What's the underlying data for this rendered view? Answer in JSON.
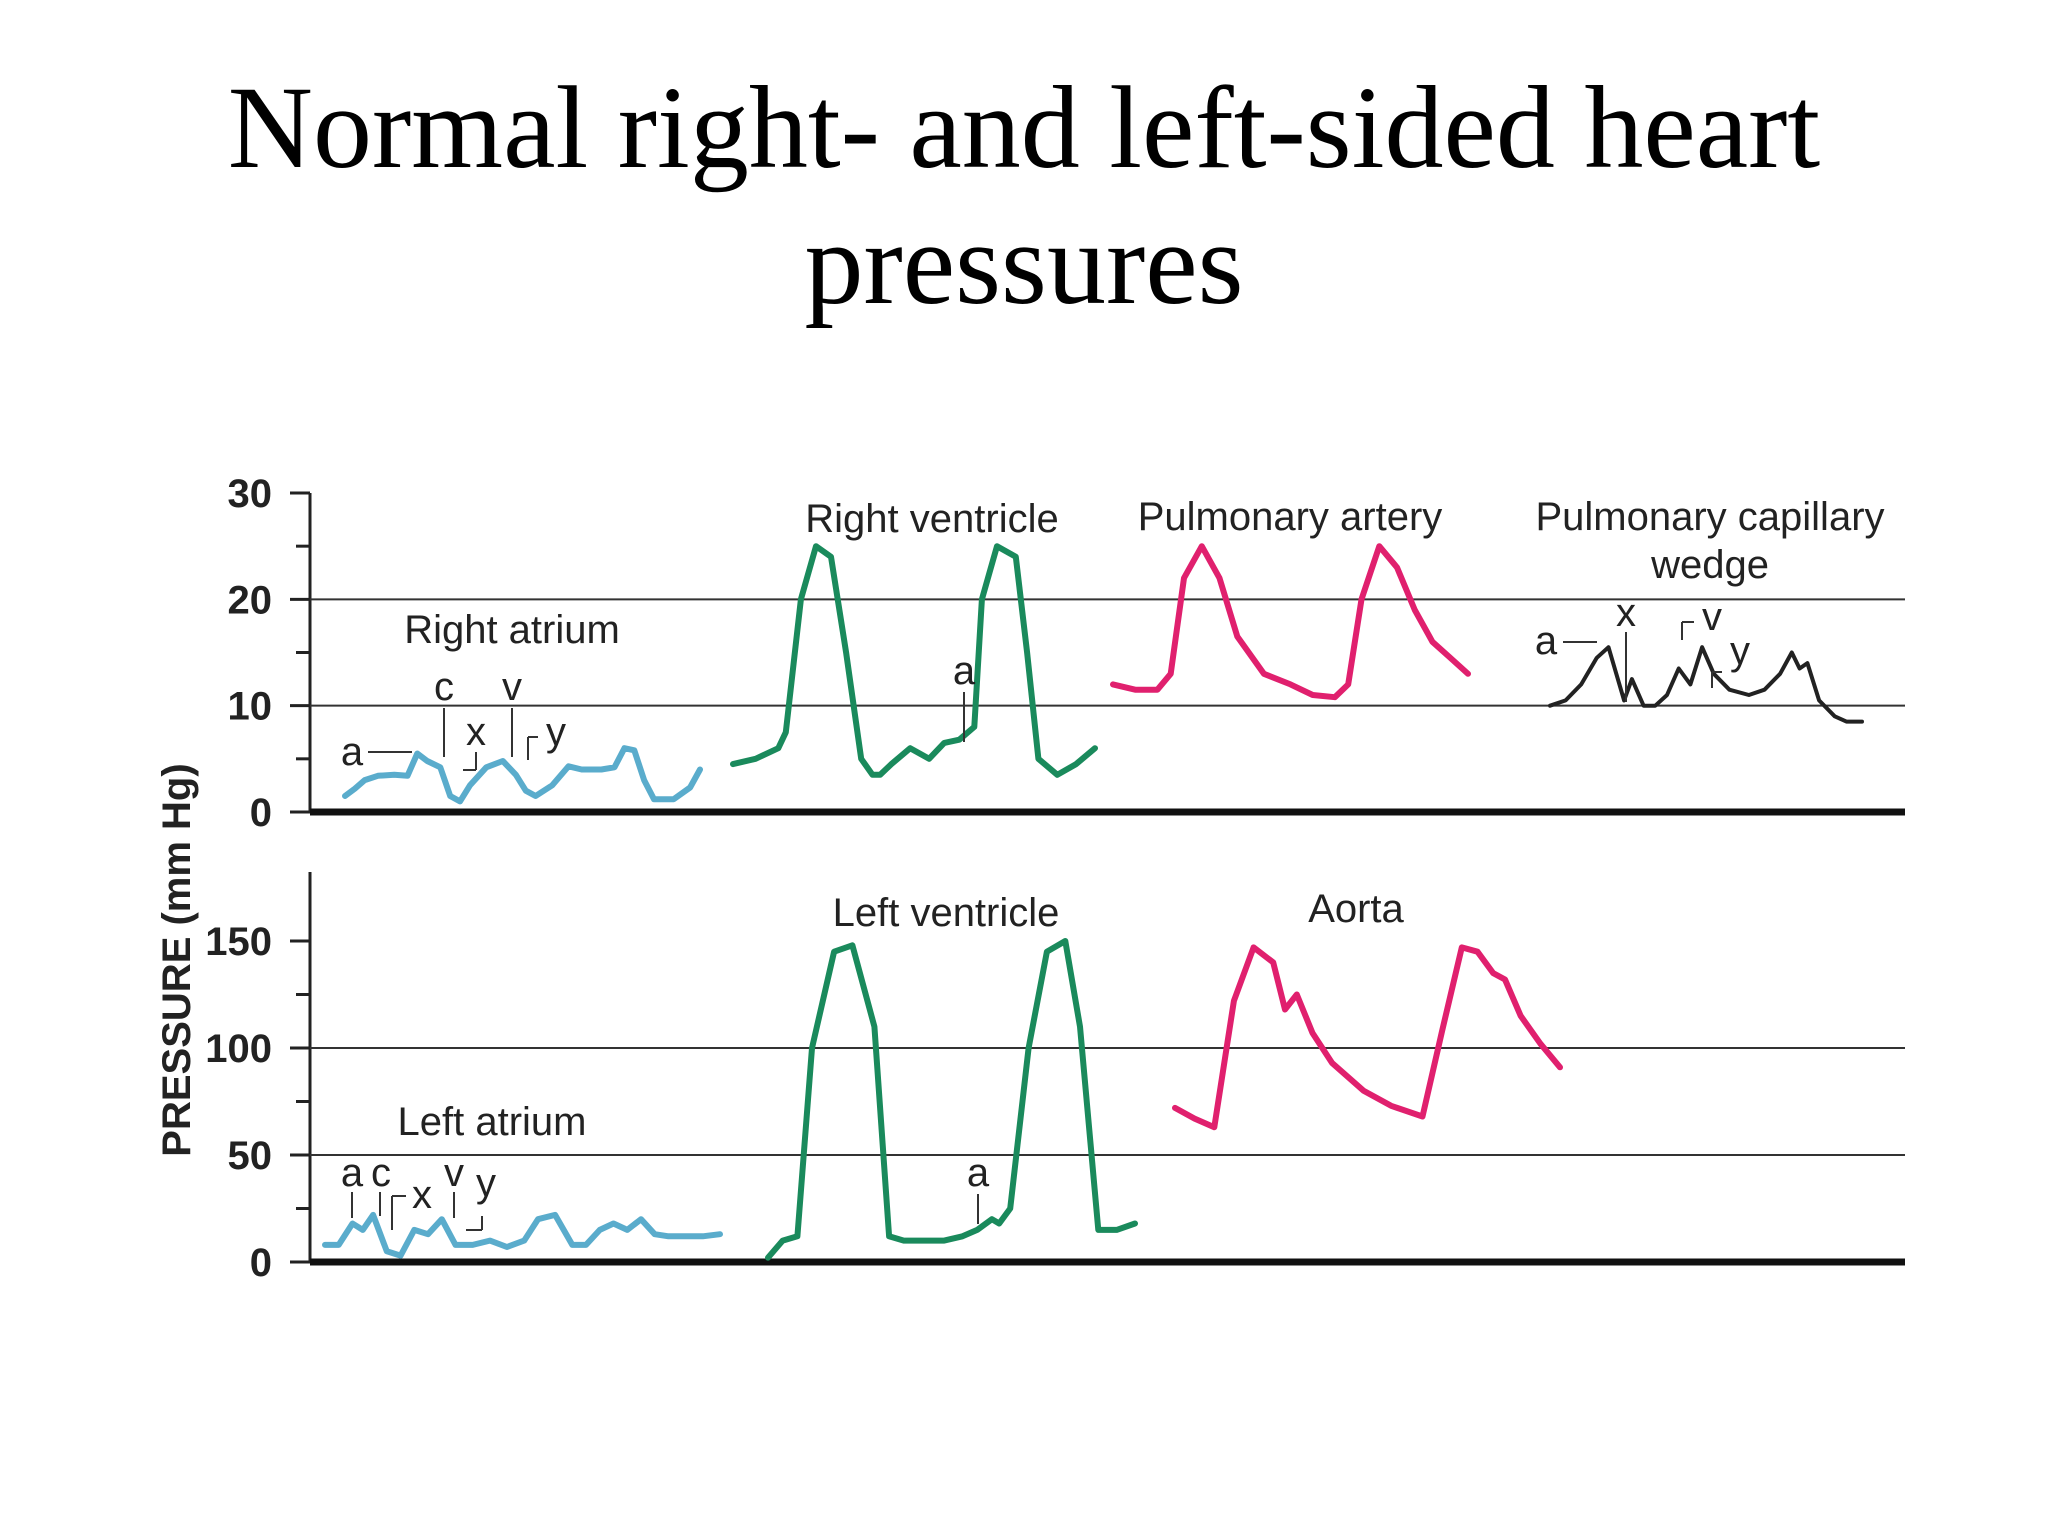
{
  "title": [
    "Normal right- and left-sided heart",
    "pressures"
  ],
  "colors": {
    "atrium": "#5aaccc",
    "ventricle": "#1a8a5c",
    "artery": "#e0206e",
    "wedge": "#222222"
  },
  "chart_data": [
    {
      "type": "line",
      "panel": "right-sided",
      "ylabel": "PRESSURE (mm Hg)",
      "ylim": [
        0,
        30
      ],
      "yticks": [
        0,
        10,
        20,
        30
      ],
      "gridlines": [
        10,
        20
      ],
      "series": [
        {
          "name": "Right atrium",
          "color_key": "atrium",
          "x": [
            0,
            0.3,
            0.6,
            1.0,
            1.5,
            1.9,
            2.2,
            2.5,
            2.9,
            3.2,
            3.5,
            3.8,
            4.3,
            4.8,
            5.2,
            5.5,
            5.8,
            6.3,
            6.8,
            7.2,
            7.8,
            8.2,
            8.5,
            8.8,
            9.1,
            9.4,
            10.0,
            10.5,
            10.8
          ],
          "y": [
            1.5,
            2.2,
            3,
            3.4,
            3.5,
            3.4,
            5.5,
            4.8,
            4.2,
            1.5,
            1,
            2.5,
            4.2,
            4.8,
            3.5,
            2,
            1.5,
            2.5,
            4.3,
            4,
            4,
            4.2,
            6,
            5.8,
            3,
            1.2,
            1.2,
            2.3,
            4
          ],
          "annotations": [
            "a",
            "c",
            "x",
            "v",
            "y"
          ]
        },
        {
          "name": "Right ventricle",
          "color_key": "ventricle",
          "x": [
            0,
            0.6,
            1.2,
            1.4,
            1.8,
            2.2,
            2.6,
            3.0,
            3.4,
            3.7,
            3.9,
            4.2,
            4.7,
            5.2,
            5.6,
            6.0,
            6.4,
            6.6,
            7.0,
            7.5,
            7.8,
            8.1,
            8.6,
            9.1,
            9.6
          ],
          "y": [
            4.5,
            5,
            6,
            7.5,
            20,
            25,
            24,
            15,
            5,
            3.5,
            3.5,
            4.5,
            6,
            5,
            6.5,
            6.8,
            8,
            20,
            25,
            24,
            15,
            5,
            3.5,
            4.5,
            6
          ],
          "annotations": [
            "a"
          ]
        },
        {
          "name": "Pulmonary artery",
          "color_key": "artery",
          "x": [
            0,
            0.5,
            1.0,
            1.3,
            1.6,
            2.0,
            2.4,
            2.8,
            3.4,
            4.0,
            4.5,
            5.0,
            5.3,
            5.6,
            6.0,
            6.4,
            6.8,
            7.2,
            7.6,
            8.0
          ],
          "y": [
            12,
            11.5,
            11.5,
            13,
            22,
            25,
            22,
            16.5,
            13,
            12,
            11,
            10.8,
            12,
            20,
            25,
            23,
            19,
            16,
            14.5,
            13
          ],
          "annotations": []
        },
        {
          "name": "Pulmonary capillary wedge",
          "color_key": "wedge",
          "x": [
            0,
            0.4,
            0.8,
            1.2,
            1.5,
            1.7,
            1.9,
            2.1,
            2.4,
            2.7,
            3.0,
            3.3,
            3.6,
            3.9,
            4.2,
            4.6,
            5.1,
            5.5,
            5.9,
            6.2,
            6.4,
            6.6,
            6.9,
            7.3,
            7.6,
            8.0
          ],
          "y": [
            10,
            10.5,
            12,
            14.5,
            15.5,
            13,
            10.5,
            12.5,
            10,
            10,
            11,
            13.5,
            12,
            15.5,
            13,
            11.5,
            11,
            11.5,
            13,
            15,
            13.5,
            14,
            10.5,
            9,
            8.5,
            8.5
          ],
          "annotations": [
            "a",
            "x",
            "v",
            "y"
          ]
        }
      ]
    },
    {
      "type": "line",
      "panel": "left-sided",
      "ylabel": "PRESSURE (mm Hg)",
      "ylim": [
        0,
        180
      ],
      "yticks": [
        0,
        50,
        100,
        150
      ],
      "gridlines": [
        50,
        100
      ],
      "series": [
        {
          "name": "Left atrium",
          "color_key": "atrium",
          "x": [
            0,
            0.4,
            0.8,
            1.1,
            1.4,
            1.8,
            2.2,
            2.6,
            3.0,
            3.4,
            3.8,
            4.3,
            4.8,
            5.3,
            5.8,
            6.2,
            6.7,
            7.2,
            7.6,
            8.0,
            8.4,
            8.8,
            9.2,
            9.6,
            10.0,
            10.5,
            11.0,
            11.5
          ],
          "y": [
            8,
            8,
            18,
            15,
            22,
            5,
            3,
            15,
            13,
            20,
            8,
            8,
            10,
            7,
            10,
            20,
            22,
            8,
            8,
            15,
            18,
            15,
            20,
            13,
            12,
            12,
            12,
            13
          ],
          "annotations": [
            "a",
            "c",
            "x",
            "v",
            "y"
          ]
        },
        {
          "name": "Left ventricle",
          "color_key": "ventricle",
          "x": [
            0,
            0.4,
            0.8,
            1.2,
            1.8,
            2.3,
            2.9,
            3.3,
            3.7,
            4.2,
            4.8,
            5.3,
            5.7,
            6.1,
            6.3,
            6.6,
            7.1,
            7.6,
            8.1,
            8.5,
            9.0,
            9.5,
            10.0
          ],
          "y": [
            2,
            10,
            12,
            100,
            145,
            148,
            110,
            12,
            10,
            10,
            10,
            12,
            15,
            20,
            18,
            25,
            100,
            145,
            150,
            110,
            15,
            15,
            18
          ],
          "annotations": [
            "a"
          ]
        },
        {
          "name": "Aorta",
          "color_key": "artery",
          "x": [
            0,
            0.5,
            1.0,
            1.5,
            2.0,
            2.5,
            2.8,
            3.1,
            3.5,
            4.0,
            4.8,
            5.5,
            6.3,
            6.8,
            7.3,
            7.7,
            8.1,
            8.4,
            8.8,
            9.3,
            9.8
          ],
          "y": [
            72,
            67,
            63,
            122,
            147,
            140,
            118,
            125,
            107,
            93,
            80,
            73,
            68,
            108,
            147,
            145,
            135,
            132,
            115,
            102,
            91
          ],
          "annotations": []
        }
      ]
    }
  ],
  "series_labels": {
    "right_atrium": "Right atrium",
    "right_ventricle": "Right ventricle",
    "pulmonary_artery": "Pulmonary artery",
    "wedge_line1": "Pulmonary capillary",
    "wedge_line2": "wedge",
    "left_atrium": "Left atrium",
    "left_ventricle": "Left ventricle",
    "aorta": "Aorta"
  },
  "wave_letters": {
    "a": "a",
    "c": "c",
    "x": "x",
    "v": "v",
    "y": "y"
  }
}
